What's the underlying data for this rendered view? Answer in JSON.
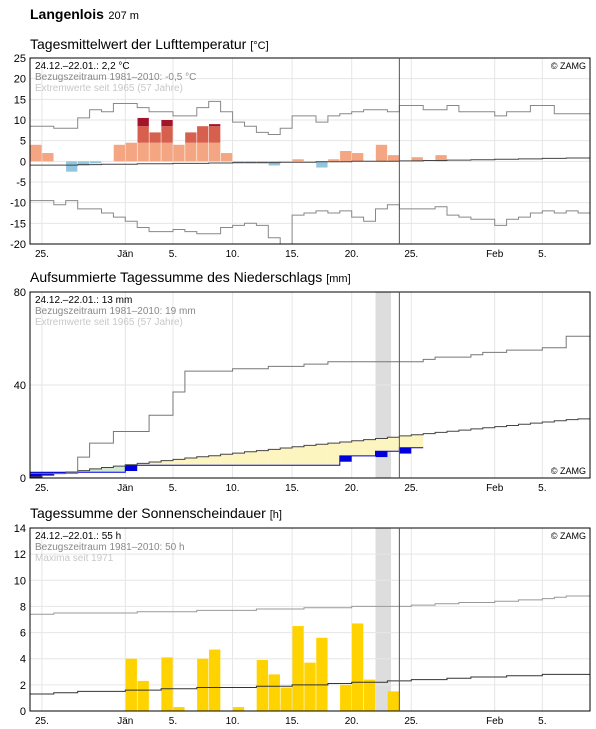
{
  "station": {
    "name": "Langenlois",
    "elevation": "207 m"
  },
  "x_axis_ticks": [
    "25.",
    "Jän",
    "5.",
    "10.",
    "15.",
    "20.",
    "25.",
    "Feb",
    "5."
  ],
  "copyright": "© ZAMG",
  "chart_data": [
    {
      "type": "bar",
      "title": "Tagesmittelwert der Lufttemperatur",
      "unit": "[°C]",
      "info": {
        "current": "24.12.–22.01.: 2,2 °C",
        "reference": "Bezugszeitraum 1981–2010: -0,5 °C",
        "extremes": "Extremwerte seit 1965 (57 Jahre)"
      },
      "ylim": [
        -20,
        25
      ],
      "yticks": [
        -20,
        -15,
        -10,
        -5,
        0,
        5,
        10,
        15,
        20,
        25
      ],
      "day_values": [
        4.0,
        2.0,
        0.0,
        -2.5,
        -1.0,
        -0.5,
        0.0,
        4.0,
        4.5,
        10.5,
        7.0,
        10.0,
        4.0,
        7.0,
        8.5,
        9.0,
        2.0,
        -0.5,
        -0.5,
        -0.5,
        -1.0,
        0.0,
        0.5,
        0.0,
        -1.5,
        0.5,
        2.5,
        2.0,
        0.0,
        4.0,
        1.5,
        0.0,
        1.0,
        0.0,
        1.5
      ],
      "reference_mean": [
        -0.9,
        -0.9,
        -0.9,
        -0.9,
        -0.8,
        -0.8,
        -0.7,
        -0.7,
        -0.7,
        -0.6,
        -0.6,
        -0.6,
        -0.5,
        -0.5,
        -0.5,
        -0.4,
        -0.4,
        -0.3,
        -0.3,
        -0.3,
        -0.3,
        -0.2,
        -0.2,
        -0.2,
        -0.1,
        -0.1,
        -0.1,
        0.0,
        0.0,
        0.0,
        0.0,
        0.1,
        0.1,
        0.2,
        0.2,
        0.3,
        0.3,
        0.4,
        0.4,
        0.5,
        0.5,
        0.6,
        0.6,
        0.7,
        0.7,
        0.8,
        0.8
      ],
      "extreme_max": [
        8.5,
        8.5,
        8.0,
        8.0,
        10.5,
        12.5,
        12.0,
        14.0,
        14.0,
        13.0,
        12.0,
        12.0,
        11.0,
        11.0,
        13.0,
        14.5,
        12.0,
        9.5,
        8.5,
        7.0,
        6.5,
        8.0,
        11.0,
        11.0,
        9.5,
        11.0,
        11.5,
        12.0,
        12.5,
        12.5,
        12.0,
        13.5,
        13.5,
        12.5,
        12.5,
        13.5,
        12.0,
        12.0,
        12.0,
        11.0,
        12.0,
        12.0,
        13.5,
        13.5,
        11.5,
        11.5,
        11.5
      ],
      "extreme_min": [
        -9.5,
        -9.5,
        -10.5,
        -9.5,
        -11.5,
        -11.5,
        -12.5,
        -13.5,
        -14.5,
        -16.0,
        -17.0,
        -17.0,
        -16.5,
        -17.0,
        -17.5,
        -17.5,
        -16.0,
        -15.5,
        -15.0,
        -15.5,
        -18.5,
        -20.0,
        -13.0,
        -12.5,
        -12.0,
        -12.5,
        -12.0,
        -13.5,
        -14.5,
        -11.5,
        -10.5,
        -11.5,
        -11.5,
        -11.5,
        -11.0,
        -13.0,
        -13.5,
        -14.0,
        -14.0,
        -15.5,
        -14.0,
        -13.5,
        -12.5,
        -12.0,
        -12.5,
        -12.0,
        -12.5
      ],
      "colors": {
        "warm": "#f4a582",
        "warm_extreme": "#a2142a",
        "warm_above": "#d6604d",
        "cold": "#92c5de"
      }
    },
    {
      "type": "area",
      "title": "Aufsummierte Tagessumme des Niederschlags",
      "unit": "[mm]",
      "info": {
        "current": "24.12.–22.01.: 13 mm",
        "reference": "Bezugszeitraum 1981–2010: 19 mm",
        "extremes": "Extremwerte seit 1965 (57 Jahre)"
      },
      "ylim": [
        0,
        80
      ],
      "yticks": [
        0,
        40,
        80
      ],
      "cumulative": [
        2.5,
        2.5,
        2.5,
        2.5,
        2.5,
        2.5,
        2.5,
        2.5,
        5.5,
        5.5,
        5.5,
        5.5,
        5.5,
        5.5,
        5.5,
        5.5,
        5.5,
        5.5,
        5.5,
        5.5,
        5.5,
        5.5,
        5.5,
        5.5,
        5.5,
        5.5,
        9.5,
        9.5,
        9.5,
        11.5,
        11.5,
        13.0,
        13.0
      ],
      "reference_cumulative": [
        0.5,
        1.2,
        1.9,
        2.6,
        3.2,
        3.9,
        4.5,
        5.1,
        5.7,
        6.3,
        6.9,
        7.5,
        8.0,
        8.6,
        9.1,
        9.6,
        10.2,
        10.7,
        11.3,
        11.8,
        12.3,
        12.9,
        13.4,
        14.0,
        14.5,
        15.0,
        15.5,
        16.0,
        16.5,
        17.0,
        17.5,
        18.1,
        18.6,
        19.1,
        19.6,
        20.1,
        20.6,
        21.1,
        21.6,
        22.1,
        22.6,
        23.1,
        23.6,
        24.1,
        24.6,
        25.1,
        25.4
      ],
      "extreme_max": [
        2.0,
        2.0,
        2.0,
        2.0,
        9.0,
        15.0,
        15.0,
        20.0,
        20.0,
        20.0,
        27.0,
        27.0,
        37.0,
        46.0,
        46.0,
        46.0,
        46.0,
        47.0,
        47.0,
        47.0,
        48.0,
        48.0,
        48.0,
        49.0,
        49.0,
        50.0,
        50.0,
        50.0,
        50.0,
        50.0,
        50.0,
        50.0,
        50.0,
        51.0,
        52.0,
        52.0,
        52.0,
        53.0,
        54.0,
        54.0,
        55.0,
        55.0,
        55.0,
        56.0,
        56.0,
        61.0,
        61.0
      ],
      "colors": {
        "below": "#cfe8cf",
        "above": "#fdf5c0",
        "series": "#0000dd",
        "ref": "#444444",
        "extreme": "#777777",
        "today": "#dddddd"
      }
    },
    {
      "type": "bar",
      "title": "Tagessumme der Sonnenscheindauer",
      "unit": "[h]",
      "info": {
        "current": "24.12.–22.01.: 55 h",
        "reference": "Bezugszeitraum 1981–2010: 50 h",
        "extremes": "Maxima seit 1971"
      },
      "ylim": [
        0,
        14
      ],
      "yticks": [
        0,
        2,
        4,
        6,
        8,
        10,
        12,
        14
      ],
      "values": [
        0,
        0,
        0,
        0,
        0,
        0,
        0,
        0,
        4.0,
        2.3,
        0,
        4.1,
        0.3,
        0,
        4.0,
        4.7,
        0,
        0.3,
        0,
        3.9,
        2.8,
        1.8,
        6.5,
        3.7,
        5.6,
        0,
        2.0,
        6.7,
        2.4,
        0,
        1.5
      ],
      "reference_mean": [
        1.3,
        1.3,
        1.4,
        1.4,
        1.5,
        1.5,
        1.5,
        1.5,
        1.6,
        1.6,
        1.6,
        1.7,
        1.7,
        1.7,
        1.8,
        1.8,
        1.8,
        1.8,
        1.8,
        1.9,
        1.9,
        1.9,
        2.0,
        2.0,
        2.0,
        2.1,
        2.1,
        2.2,
        2.2,
        2.2,
        2.3,
        2.3,
        2.4,
        2.4,
        2.4,
        2.5,
        2.5,
        2.6,
        2.6,
        2.6,
        2.7,
        2.7,
        2.7,
        2.8,
        2.8,
        2.8,
        2.8
      ],
      "maxima": [
        7.4,
        7.4,
        7.5,
        7.5,
        7.5,
        7.5,
        7.5,
        7.5,
        7.5,
        7.6,
        7.6,
        7.6,
        7.6,
        7.6,
        7.7,
        7.7,
        7.7,
        7.7,
        7.7,
        7.8,
        7.8,
        7.8,
        7.8,
        7.9,
        7.9,
        7.9,
        7.9,
        8.0,
        8.0,
        8.0,
        8.0,
        8.0,
        8.1,
        8.1,
        8.2,
        8.2,
        8.3,
        8.3,
        8.3,
        8.4,
        8.4,
        8.5,
        8.5,
        8.6,
        8.7,
        8.8,
        8.8
      ],
      "colors": {
        "bar": "#ffd300",
        "ref": "#333333",
        "extreme": "#999999",
        "today": "#dddddd"
      }
    }
  ]
}
